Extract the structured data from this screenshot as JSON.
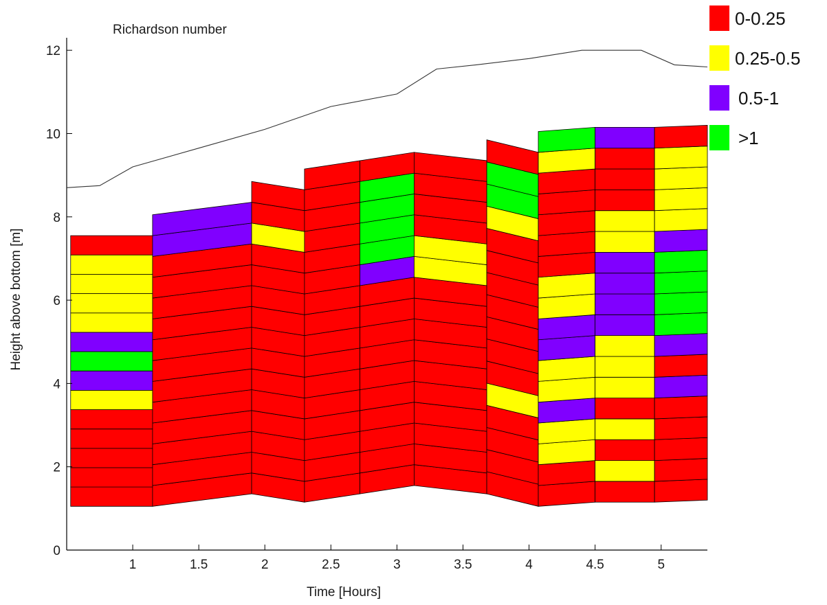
{
  "chart_data": {
    "type": "heatmap",
    "title": "Richardson number",
    "xlabel": "Time [Hours]",
    "ylabel": "Height above bottom [m]",
    "xlim": [
      0.5,
      5.35
    ],
    "ylim": [
      0,
      12.3
    ],
    "xticks": [
      "1",
      "1.5",
      "2",
      "2.5",
      "3",
      "3.5",
      "4",
      "4.5",
      "5"
    ],
    "xtick_values": [
      1,
      1.5,
      2,
      2.5,
      3,
      3.5,
      4,
      4.5,
      5
    ],
    "yticks": [
      "0",
      "2",
      "4",
      "6",
      "8",
      "10",
      "12"
    ],
    "ytick_values": [
      0,
      2,
      4,
      6,
      8,
      10,
      12
    ],
    "legend": [
      {
        "label": "0-0.25",
        "key": "r",
        "color": "#ff0000"
      },
      {
        "label": "0.25-0.5",
        "key": "y",
        "color": "#ffff00"
      },
      {
        "label": "0.5-1",
        "key": "p",
        "color": "#8000ff"
      },
      {
        "label": ">1",
        "key": "g",
        "color": "#00ff00"
      }
    ],
    "surface_line": {
      "x": [
        0.5,
        0.75,
        1.0,
        1.5,
        2.0,
        2.5,
        3.0,
        3.3,
        3.6,
        4.0,
        4.4,
        4.85,
        5.1,
        5.35
      ],
      "y": [
        8.7,
        8.75,
        9.2,
        9.65,
        10.1,
        10.65,
        10.95,
        11.55,
        11.65,
        11.8,
        12.0,
        12.0,
        11.65,
        11.6
      ]
    },
    "segments": [
      {
        "x0": 0.53,
        "x1": 1.15,
        "base0": 1.05,
        "base1": 1.05,
        "top0": 7.55,
        "top1": 7.55,
        "cells": [
          "r",
          "r",
          "r",
          "r",
          "r",
          "y",
          "p",
          "g",
          "p",
          "y",
          "y",
          "y",
          "y",
          "r"
        ]
      },
      {
        "x0": 1.15,
        "x1": 1.9,
        "base0": 1.05,
        "base1": 1.35,
        "top0": 8.05,
        "top1": 8.35,
        "cells": [
          "r",
          "r",
          "r",
          "r",
          "r",
          "r",
          "r",
          "r",
          "r",
          "r",
          "r",
          "r",
          "p",
          "p"
        ]
      },
      {
        "x0": 1.9,
        "x1": 2.3,
        "base0": 1.35,
        "base1": 1.15,
        "top0": 8.85,
        "top1": 8.65,
        "cells": [
          "r",
          "r",
          "r",
          "r",
          "r",
          "r",
          "r",
          "r",
          "r",
          "r",
          "r",
          "r",
          "y",
          "r",
          "r"
        ]
      },
      {
        "x0": 2.3,
        "x1": 2.72,
        "base0": 1.15,
        "base1": 1.35,
        "top0": 9.15,
        "top1": 9.35,
        "cells": [
          "r",
          "r",
          "r",
          "r",
          "r",
          "r",
          "r",
          "r",
          "r",
          "r",
          "r",
          "r",
          "r",
          "r",
          "r",
          "r"
        ]
      },
      {
        "x0": 2.72,
        "x1": 3.13,
        "base0": 1.35,
        "base1": 1.55,
        "top0": 9.35,
        "top1": 9.55,
        "cells": [
          "r",
          "r",
          "r",
          "r",
          "r",
          "r",
          "r",
          "r",
          "r",
          "r",
          "p",
          "g",
          "g",
          "g",
          "g",
          "r"
        ]
      },
      {
        "x0": 3.13,
        "x1": 3.68,
        "base0": 1.55,
        "base1": 1.35,
        "top0": 9.55,
        "top1": 9.35,
        "cells": [
          "r",
          "r",
          "r",
          "r",
          "r",
          "r",
          "r",
          "r",
          "r",
          "r",
          "y",
          "y",
          "r",
          "r",
          "r",
          "r"
        ]
      },
      {
        "x0": 3.68,
        "x1": 4.07,
        "base0": 1.35,
        "base1": 1.05,
        "top0": 9.85,
        "top1": 9.55,
        "cells": [
          "r",
          "r",
          "r",
          "r",
          "y",
          "r",
          "r",
          "r",
          "r",
          "r",
          "r",
          "r",
          "y",
          "g",
          "g",
          "r"
        ]
      },
      {
        "x0": 4.07,
        "x1": 4.5,
        "base0": 1.05,
        "base1": 1.15,
        "top0": 10.05,
        "top1": 10.15,
        "cells": [
          "r",
          "r",
          "y",
          "y",
          "p",
          "y",
          "y",
          "p",
          "p",
          "y",
          "y",
          "r",
          "r",
          "r",
          "r",
          "r",
          "y",
          "g"
        ]
      },
      {
        "x0": 4.5,
        "x1": 4.95,
        "base0": 1.15,
        "base1": 1.15,
        "top0": 10.15,
        "top1": 10.15,
        "cells": [
          "r",
          "y",
          "r",
          "y",
          "r",
          "y",
          "y",
          "y",
          "p",
          "p",
          "p",
          "p",
          "y",
          "y",
          "r",
          "r",
          "r",
          "p"
        ]
      },
      {
        "x0": 4.95,
        "x1": 5.35,
        "base0": 1.15,
        "base1": 1.2,
        "top0": 10.15,
        "top1": 10.2,
        "cells": [
          "r",
          "r",
          "r",
          "r",
          "r",
          "p",
          "r",
          "p",
          "g",
          "g",
          "g",
          "g",
          "p",
          "y",
          "y",
          "y",
          "y",
          "r"
        ]
      }
    ]
  }
}
